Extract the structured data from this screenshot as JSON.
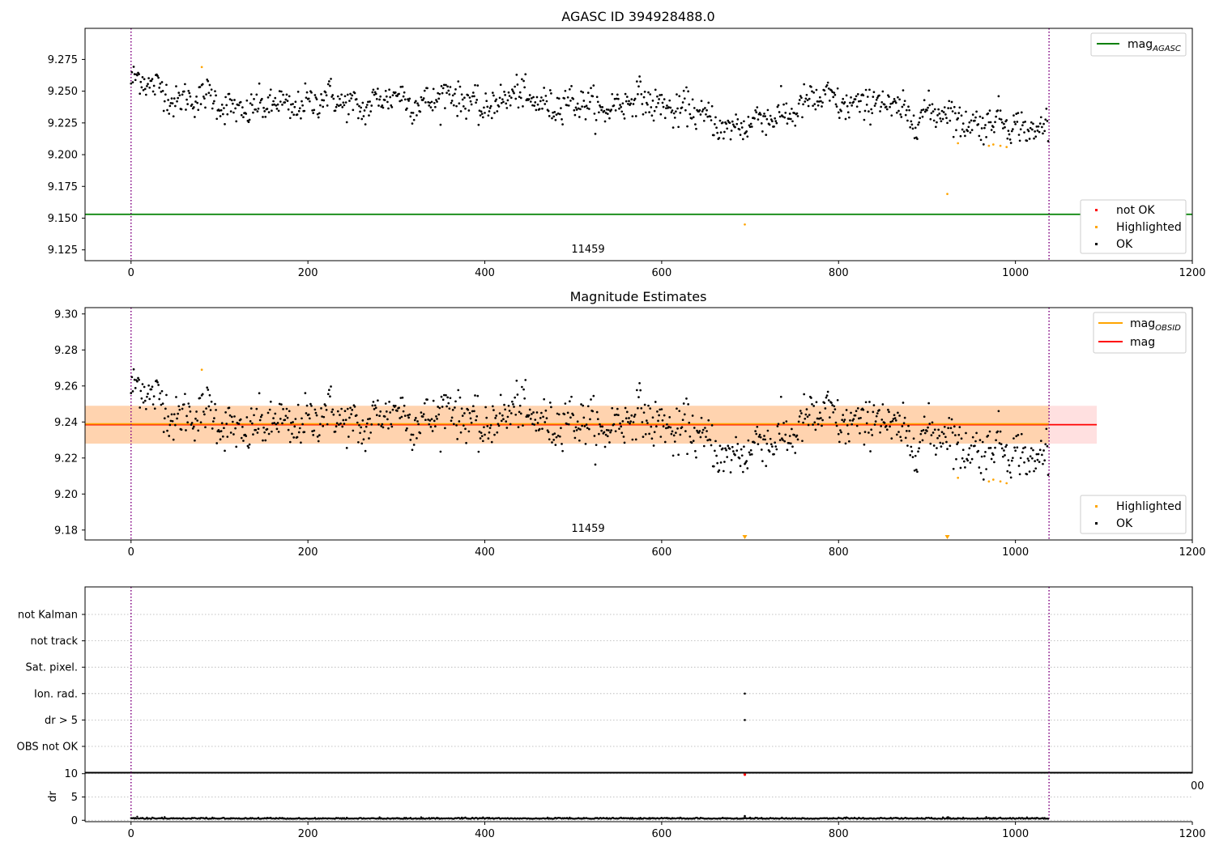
{
  "figure": {
    "title_top": "AGASC ID 394928488.0",
    "title_mid": "Magnitude Estimates",
    "obsid_label": "11459",
    "cropped_tick_fragment": "00",
    "colors": {
      "ok": "#000000",
      "highlighted": "#ffa500",
      "not_ok": "#ff0000",
      "mag_agasc": "#008000",
      "mag_obsid": "#ffa500",
      "mag": "#ff0000",
      "obs_boundary": "#800080",
      "band_obsid": "#ffa500",
      "band_mag": "#ff9999"
    }
  },
  "legends": {
    "top_lines": [
      {
        "label": "mag",
        "sub": "AGASC",
        "color": "#008000"
      }
    ],
    "top_points": [
      {
        "label": "not OK",
        "color": "#ff0000"
      },
      {
        "label": "Highlighted",
        "color": "#ffa500"
      },
      {
        "label": "OK",
        "color": "#000000"
      }
    ],
    "mid_lines": [
      {
        "label": "mag",
        "sub": "OBSID",
        "color": "#ffa500"
      },
      {
        "label": "mag",
        "sub": "",
        "color": "#ff0000"
      }
    ],
    "mid_points": [
      {
        "label": "Highlighted",
        "color": "#ffa500"
      },
      {
        "label": "OK",
        "color": "#000000"
      }
    ]
  },
  "chart_data": [
    {
      "type": "scatter",
      "title": "AGASC ID 394928488.0",
      "xlim": [
        -52,
        1200
      ],
      "ylim": [
        9.1165,
        9.2995
      ],
      "xticks": [
        0,
        200,
        400,
        600,
        800,
        1000,
        1200
      ],
      "yticks": [
        9.125,
        9.15,
        9.175,
        9.2,
        9.225,
        9.25,
        9.275
      ],
      "obs_boundaries": [
        0,
        1038
      ],
      "mag_agasc": 9.153,
      "annotation": "11459",
      "n_ok": 1038,
      "ok_trend": [
        {
          "x": 0,
          "y": 9.258
        },
        {
          "x": 50,
          "y": 9.247
        },
        {
          "x": 100,
          "y": 9.24
        },
        {
          "x": 150,
          "y": 9.235
        },
        {
          "x": 200,
          "y": 9.243
        },
        {
          "x": 250,
          "y": 9.24
        },
        {
          "x": 300,
          "y": 9.243
        },
        {
          "x": 350,
          "y": 9.245
        },
        {
          "x": 400,
          "y": 9.24
        },
        {
          "x": 450,
          "y": 9.245
        },
        {
          "x": 500,
          "y": 9.238
        },
        {
          "x": 550,
          "y": 9.24
        },
        {
          "x": 600,
          "y": 9.242
        },
        {
          "x": 650,
          "y": 9.227
        },
        {
          "x": 700,
          "y": 9.222
        },
        {
          "x": 750,
          "y": 9.238
        },
        {
          "x": 800,
          "y": 9.243
        },
        {
          "x": 850,
          "y": 9.238
        },
        {
          "x": 900,
          "y": 9.232
        },
        {
          "x": 950,
          "y": 9.228
        },
        {
          "x": 1000,
          "y": 9.222
        },
        {
          "x": 1038,
          "y": 9.224
        }
      ],
      "ok_scatter_sd": 0.0085,
      "highlighted": [
        {
          "x": 80,
          "y": 9.269
        },
        {
          "x": 694,
          "y": 9.145
        },
        {
          "x": 923,
          "y": 9.169
        },
        {
          "x": 935,
          "y": 9.209
        },
        {
          "x": 970,
          "y": 9.207
        },
        {
          "x": 975,
          "y": 9.208
        },
        {
          "x": 983,
          "y": 9.207
        },
        {
          "x": 990,
          "y": 9.206
        }
      ],
      "not_ok": []
    },
    {
      "type": "scatter",
      "title": "Magnitude Estimates",
      "xlim": [
        -52,
        1200
      ],
      "ylim": [
        9.1745,
        9.3035
      ],
      "xticks": [
        0,
        200,
        400,
        600,
        800,
        1000,
        1200
      ],
      "yticks": [
        9.18,
        9.2,
        9.22,
        9.24,
        9.26,
        9.28,
        9.3
      ],
      "obs_boundaries": [
        0,
        1038
      ],
      "mag_obsid": 9.2385,
      "mag": 9.2385,
      "band_obsid": [
        9.228,
        9.249
      ],
      "band_mag": [
        9.228,
        9.249
      ],
      "band_obsid_x": [
        -52,
        1038
      ],
      "band_mag_x": [
        -52,
        1092
      ],
      "annotation": "11459",
      "n_ok": 1038,
      "highlighted": [
        {
          "x": 80,
          "y": 9.269
        },
        {
          "x": 935,
          "y": 9.209
        },
        {
          "x": 970,
          "y": 9.207
        },
        {
          "x": 975,
          "y": 9.208
        },
        {
          "x": 983,
          "y": 9.207
        },
        {
          "x": 990,
          "y": 9.206
        }
      ],
      "highlighted_off_axis": [
        {
          "x": 694
        },
        {
          "x": 923
        }
      ]
    },
    {
      "type": "scatter",
      "xlim": [
        -52,
        1200
      ],
      "categories": [
        "OBS not OK",
        "dr > 5",
        "Ion. rad.",
        "Sat. pixel.",
        "not track",
        "not Kalman"
      ],
      "flags": [
        {
          "category": "dr > 5",
          "x": 694
        },
        {
          "category": "Ion. rad.",
          "x": 694
        }
      ],
      "obs_boundaries": [
        0,
        1038
      ]
    },
    {
      "type": "scatter",
      "ylabel": "dr",
      "xlim": [
        -52,
        1200
      ],
      "ylim": [
        -0.3,
        10.3
      ],
      "xticks": [
        0,
        200,
        400,
        600,
        800,
        1000,
        1200
      ],
      "yticks": [
        0,
        5,
        10
      ],
      "obs_boundaries": [
        0,
        1038
      ],
      "n_ok": 1038,
      "typical_dr": 0.3,
      "outliers_ok": [
        {
          "x": 694,
          "y": 0.9
        },
        {
          "x": 923,
          "y": 0.6
        }
      ],
      "not_ok": [
        {
          "x": 694,
          "y": 9.8
        }
      ]
    }
  ]
}
